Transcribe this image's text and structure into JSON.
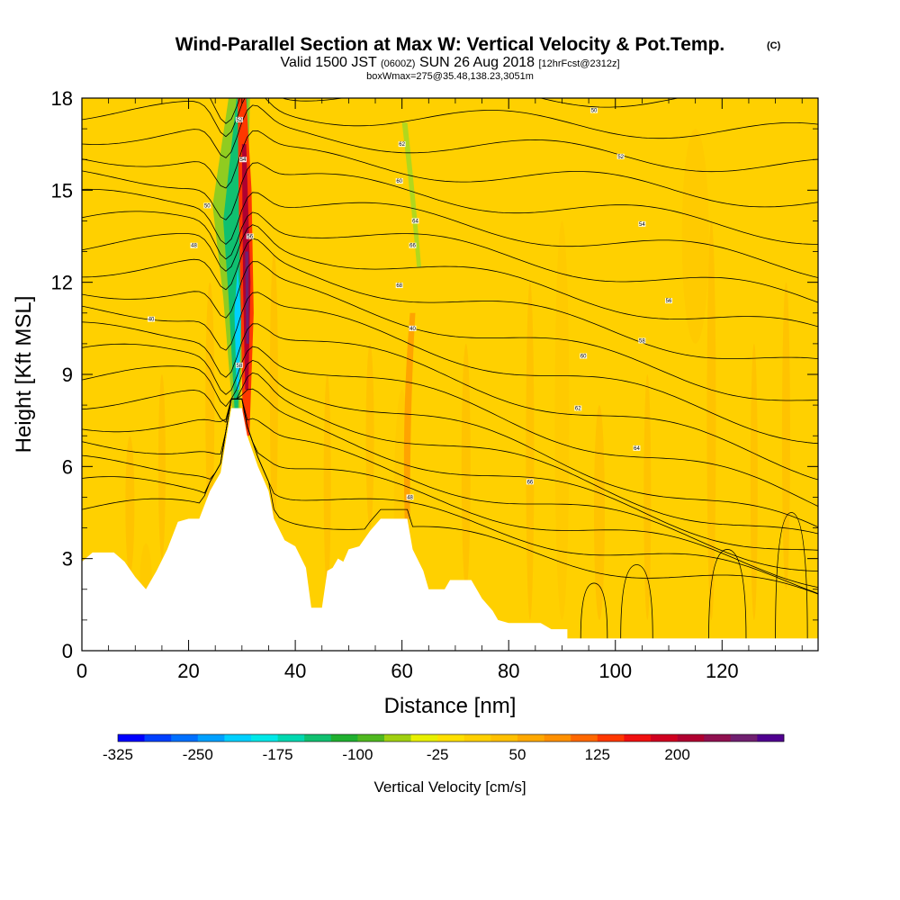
{
  "title": {
    "main": "Wind-Parallel Section at Max W: Vertical Velocity & Pot.Temp.",
    "copyright": "(C)",
    "valid_prefix": "Valid 1500 JST",
    "valid_utc": "(0600Z)",
    "valid_date": "SUN 26 Aug 2018",
    "forecast": "[12hrFcst@2312z]",
    "box": "boxWmax=275@35.48,138.23,3051m"
  },
  "chart_data": {
    "type": "heatmap",
    "xlabel": "Distance [nm]",
    "ylabel": "Height [Kft MSL]",
    "xlim": [
      0,
      138
    ],
    "ylim": [
      0,
      18
    ],
    "x_ticks": [
      0,
      20,
      40,
      60,
      80,
      100,
      120
    ],
    "y_ticks": [
      0,
      3,
      6,
      9,
      12,
      15,
      18
    ],
    "colorbar": {
      "label": "Vertical Velocity [cm/s]",
      "tick_values": [
        -325,
        -250,
        -175,
        -100,
        -25,
        50,
        125,
        200
      ],
      "colors": [
        "#0000ff",
        "#0040ff",
        "#0070ff",
        "#00a0ff",
        "#00d0ff",
        "#00e8e8",
        "#00d8b0",
        "#10c070",
        "#20b030",
        "#50b820",
        "#a0d010",
        "#e8f000",
        "#ffe000",
        "#ffd000",
        "#ffc000",
        "#ffa800",
        "#ff9000",
        "#ff6800",
        "#ff3800",
        "#f01010",
        "#d00020",
        "#b00030",
        "#901050",
        "#702070",
        "#500090"
      ]
    },
    "terrain": [
      [
        0,
        2.9
      ],
      [
        2,
        3.2
      ],
      [
        6,
        3.2
      ],
      [
        8,
        2.9
      ],
      [
        10,
        2.4
      ],
      [
        12,
        2.0
      ],
      [
        14,
        2.6
      ],
      [
        16,
        3.3
      ],
      [
        18,
        4.2
      ],
      [
        20,
        4.3
      ],
      [
        22,
        4.3
      ],
      [
        24,
        5.2
      ],
      [
        26,
        5.8
      ],
      [
        28,
        7.9
      ],
      [
        30,
        7.9
      ],
      [
        31,
        7.0
      ],
      [
        33,
        6.0
      ],
      [
        35,
        5.2
      ],
      [
        36,
        4.3
      ],
      [
        38,
        3.6
      ],
      [
        40,
        3.4
      ],
      [
        42,
        2.7
      ],
      [
        43,
        1.4
      ],
      [
        45,
        1.4
      ],
      [
        46,
        2.6
      ],
      [
        47,
        2.7
      ],
      [
        48,
        3.0
      ],
      [
        49,
        2.9
      ],
      [
        50,
        3.3
      ],
      [
        52,
        3.4
      ],
      [
        54,
        3.9
      ],
      [
        56,
        4.3
      ],
      [
        61,
        4.3
      ],
      [
        62,
        3.3
      ],
      [
        64,
        2.6
      ],
      [
        65,
        2.0
      ],
      [
        68,
        2.0
      ],
      [
        69,
        2.3
      ],
      [
        73,
        2.3
      ],
      [
        75,
        1.7
      ],
      [
        77,
        1.3
      ],
      [
        78,
        1.0
      ],
      [
        80,
        0.9
      ],
      [
        86,
        0.9
      ],
      [
        88,
        0.7
      ],
      [
        91,
        0.7
      ],
      [
        91,
        0.4
      ],
      [
        138,
        0.4
      ]
    ],
    "isentrope_labels": [
      "40",
      "48",
      "50",
      "52",
      "54",
      "56",
      "58",
      "60",
      "62",
      "64",
      "66",
      "68"
    ],
    "max_w_cm_s": 275
  }
}
